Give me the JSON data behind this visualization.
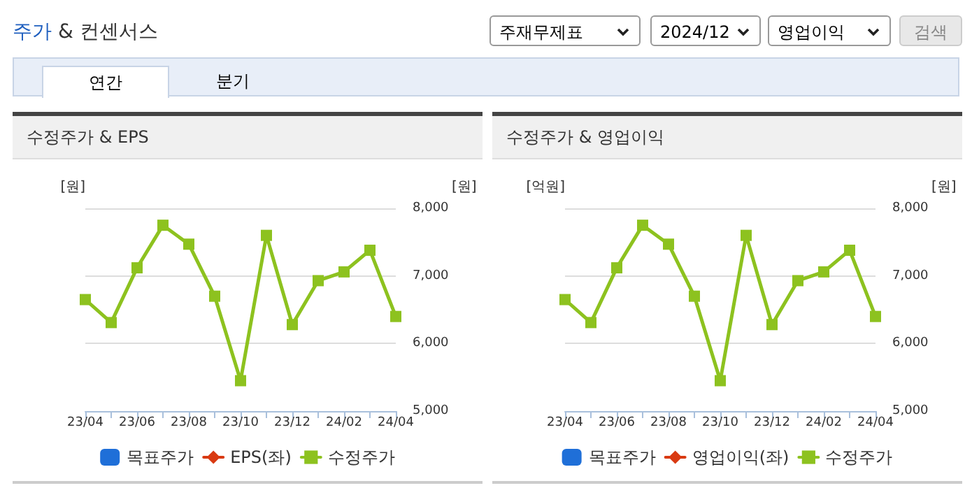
{
  "chart_data": [
    {
      "type": "other",
      "title": "주가 & 컨센서스",
      "annotations": [
        "주재무제표",
        "2024/12",
        "영업이익",
        "검색",
        "연간",
        "분기"
      ]
    },
    {
      "type": "line",
      "title": "수정주가 & EPS",
      "ylabel": "[원]",
      "y2label": "[원]",
      "categories": [
        "23/04",
        null,
        "23/06",
        null,
        "23/08",
        null,
        "23/10",
        null,
        "23/12",
        null,
        "24/02",
        null,
        "24/04"
      ],
      "series": [
        {
          "name": "목표주가",
          "type": "bar",
          "color": "#1f6fd8",
          "values": [
            null,
            null,
            null,
            null,
            null,
            null,
            null,
            null,
            null,
            null,
            null,
            null,
            null
          ]
        },
        {
          "name": "EPS(좌)",
          "type": "line",
          "marker": "diamond",
          "color": "#d93a12",
          "values": [
            null,
            null,
            null,
            null,
            null,
            null,
            null,
            null,
            null,
            null,
            null,
            null,
            null
          ]
        },
        {
          "name": "수정주가",
          "type": "line",
          "marker": "square",
          "axis": "y2",
          "color": "#8dc21f",
          "values": [
            6650,
            6310,
            7120,
            7750,
            7470,
            6700,
            5450,
            7600,
            6280,
            6930,
            7060,
            7380,
            6400
          ]
        }
      ],
      "y2lim": [
        5000,
        8000
      ],
      "y2ticks": [
        {
          "value": 5000,
          "label": "5,000"
        },
        {
          "value": 6000,
          "label": "6,000"
        },
        {
          "value": 7000,
          "label": "7,000"
        },
        {
          "value": 8000,
          "label": "8,000"
        }
      ],
      "tick_labels": "x",
      "grid": "y",
      "legend": "bottom",
      "line_style": "solid"
    },
    {
      "type": "line",
      "title": "수정주가 & 영업이익",
      "ylabel": "[억원]",
      "y2label": "[원]",
      "categories": [
        "23/04",
        null,
        "23/06",
        null,
        "23/08",
        null,
        "23/10",
        null,
        "23/12",
        null,
        "24/02",
        null,
        "24/04"
      ],
      "series": [
        {
          "name": "목표주가",
          "type": "bar",
          "color": "#1f6fd8",
          "values": [
            null,
            null,
            null,
            null,
            null,
            null,
            null,
            null,
            null,
            null,
            null,
            null,
            null
          ]
        },
        {
          "name": "영업이익(좌)",
          "type": "line",
          "marker": "diamond",
          "color": "#d93a12",
          "values": [
            null,
            null,
            null,
            null,
            null,
            null,
            null,
            null,
            null,
            null,
            null,
            null,
            null
          ]
        },
        {
          "name": "수정주가",
          "type": "line",
          "marker": "square",
          "axis": "y2",
          "color": "#8dc21f",
          "values": [
            6650,
            6310,
            7120,
            7750,
            7470,
            6700,
            5450,
            7600,
            6280,
            6930,
            7060,
            7380,
            6400
          ]
        }
      ],
      "y2lim": [
        5000,
        8000
      ],
      "y2ticks": [
        {
          "value": 5000,
          "label": "5,000"
        },
        {
          "value": 6000,
          "label": "6,000"
        },
        {
          "value": 7000,
          "label": "7,000"
        },
        {
          "value": 8000,
          "label": "8,000"
        }
      ],
      "tick_labels": "x",
      "grid": "y",
      "legend": "bottom",
      "line_style": "solid"
    }
  ]
}
